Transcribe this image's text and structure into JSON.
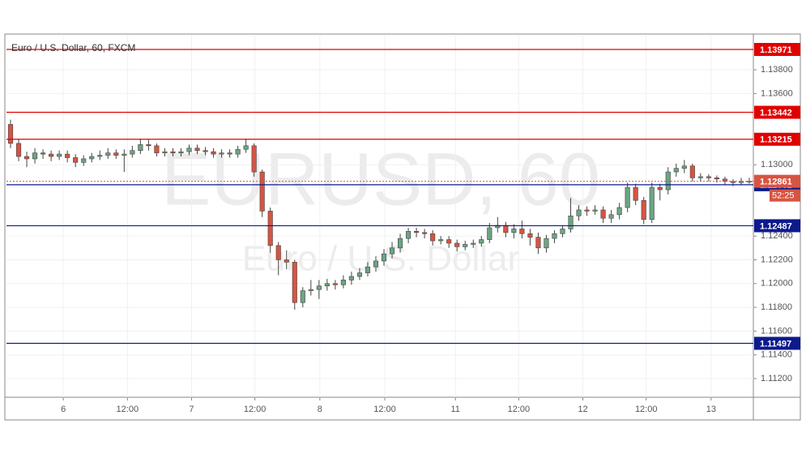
{
  "chart_data": {
    "type": "candlestick",
    "title": "Euro / U.S. Dollar, 60, FXCM",
    "watermark": "EURUSD, 60",
    "watermark_subtitle": "Euro / U.S. Dollar",
    "up_color": "#6ba583",
    "down_color": "#d75442",
    "open": [
      1.1334,
      1.1318,
      1.1307,
      1.1305,
      1.131,
      1.1309,
      1.1307,
      1.1309,
      1.1306,
      1.1302,
      1.1305,
      1.1307,
      1.1308,
      1.131,
      1.1308,
      1.1309,
      1.1312,
      1.1317,
      1.1316,
      1.131,
      1.1311,
      1.131,
      1.1311,
      1.1314,
      1.1312,
      1.1311,
      1.1309,
      1.131,
      1.1309,
      1.1313,
      1.1316,
      1.1294,
      1.1261,
      1.1232,
      1.122,
      1.1218,
      1.1184,
      1.1194,
      1.1195,
      1.1198,
      1.12,
      1.1199,
      1.1203,
      1.1206,
      1.1209,
      1.1214,
      1.1219,
      1.1225,
      1.123,
      1.1238,
      1.1244,
      1.1243,
      1.1242,
      1.1236,
      1.1237,
      1.1234,
      1.1231,
      1.1233,
      1.1234,
      1.1237,
      1.1247,
      1.1249,
      1.1243,
      1.1246,
      1.1242,
      1.1239,
      1.123,
      1.1238,
      1.1242,
      1.1246,
      1.1257,
      1.1262,
      1.1261,
      1.1262,
      1.1255,
      1.1258,
      1.1264,
      1.1281,
      1.127,
      1.1254,
      1.1281,
      1.1279,
      1.1294,
      1.1297,
      1.1299,
      1.1289,
      1.129,
      1.1289,
      1.1288,
      1.1286,
      1.1285,
      1.1286
    ],
    "high": [
      1.1338,
      1.1322,
      1.1311,
      1.1314,
      1.1313,
      1.1312,
      1.1312,
      1.1312,
      1.1309,
      1.1308,
      1.131,
      1.1312,
      1.1314,
      1.1313,
      1.1313,
      1.1316,
      1.1322,
      1.1321,
      1.1318,
      1.1314,
      1.1314,
      1.1314,
      1.1317,
      1.1317,
      1.1315,
      1.1314,
      1.1313,
      1.1313,
      1.1316,
      1.1322,
      1.1318,
      1.1296,
      1.1264,
      1.1235,
      1.1228,
      1.122,
      1.1197,
      1.1203,
      1.1203,
      1.1204,
      1.1203,
      1.1207,
      1.121,
      1.1213,
      1.1218,
      1.1223,
      1.1229,
      1.1235,
      1.1242,
      1.1247,
      1.1247,
      1.1246,
      1.1245,
      1.124,
      1.124,
      1.1237,
      1.1236,
      1.1237,
      1.124,
      1.1251,
      1.1256,
      1.1252,
      1.125,
      1.1253,
      1.1246,
      1.1243,
      1.1241,
      1.1245,
      1.1249,
      1.1272,
      1.1266,
      1.1265,
      1.1266,
      1.1265,
      1.1262,
      1.1268,
      1.1285,
      1.1284,
      1.1273,
      1.1285,
      1.1284,
      1.1298,
      1.1301,
      1.1304,
      1.1301,
      1.1293,
      1.1292,
      1.1291,
      1.129,
      1.1288,
      1.1289,
      1.1289
    ],
    "low": [
      1.1314,
      1.1303,
      1.1298,
      1.1301,
      1.1305,
      1.1303,
      1.1304,
      1.1302,
      1.1298,
      1.1299,
      1.1302,
      1.1304,
      1.1305,
      1.1305,
      1.1294,
      1.1306,
      1.1309,
      1.1312,
      1.1307,
      1.1307,
      1.1307,
      1.1307,
      1.1308,
      1.1309,
      1.1308,
      1.1306,
      1.1306,
      1.1306,
      1.1306,
      1.131,
      1.129,
      1.1256,
      1.1226,
      1.1207,
      1.1212,
      1.1178,
      1.118,
      1.119,
      1.1187,
      1.1194,
      1.1195,
      1.1196,
      1.1199,
      1.1203,
      1.1206,
      1.121,
      1.1215,
      1.1221,
      1.1226,
      1.1234,
      1.1239,
      1.1238,
      1.1232,
      1.1233,
      1.123,
      1.1227,
      1.1228,
      1.123,
      1.1231,
      1.1234,
      1.1243,
      1.1239,
      1.1238,
      1.1238,
      1.1232,
      1.1225,
      1.1226,
      1.1234,
      1.1239,
      1.1243,
      1.1253,
      1.1257,
      1.1258,
      1.1251,
      1.1251,
      1.1254,
      1.126,
      1.1266,
      1.125,
      1.1251,
      1.127,
      1.1275,
      1.129,
      1.1293,
      1.1286,
      1.1286,
      1.1286,
      1.1285,
      1.1283,
      1.1282,
      1.1283,
      1.1284
    ],
    "close": [
      1.1318,
      1.1307,
      1.1305,
      1.131,
      1.1309,
      1.1307,
      1.1309,
      1.1306,
      1.1302,
      1.1305,
      1.1307,
      1.1308,
      1.131,
      1.1308,
      1.1309,
      1.1312,
      1.1317,
      1.1316,
      1.131,
      1.1311,
      1.131,
      1.1311,
      1.1314,
      1.1312,
      1.1311,
      1.1309,
      1.131,
      1.1309,
      1.1313,
      1.1316,
      1.1294,
      1.1261,
      1.1232,
      1.122,
      1.1218,
      1.1184,
      1.1194,
      1.1195,
      1.1198,
      1.12,
      1.1199,
      1.1203,
      1.1206,
      1.1209,
      1.1214,
      1.1219,
      1.1225,
      1.123,
      1.1238,
      1.1244,
      1.1243,
      1.1242,
      1.1236,
      1.1237,
      1.1234,
      1.1231,
      1.1233,
      1.1234,
      1.1237,
      1.1247,
      1.1249,
      1.1243,
      1.1246,
      1.1242,
      1.1239,
      1.123,
      1.1238,
      1.1242,
      1.1246,
      1.1257,
      1.1262,
      1.1261,
      1.1262,
      1.1255,
      1.1258,
      1.1264,
      1.1281,
      1.127,
      1.1254,
      1.1281,
      1.1279,
      1.1294,
      1.1297,
      1.1299,
      1.1289,
      1.129,
      1.1289,
      1.1288,
      1.1286,
      1.1285,
      1.1286,
      1.12861
    ],
    "xlim": [
      -0.5,
      91.5
    ],
    "xticks": [
      {
        "value": 6.5,
        "label": "6"
      },
      {
        "value": 14.4,
        "label": "12:00"
      },
      {
        "value": 22.3,
        "label": "7"
      },
      {
        "value": 30.1,
        "label": "12:00"
      },
      {
        "value": 38.1,
        "label": "8"
      },
      {
        "value": 46.1,
        "label": "12:00"
      },
      {
        "value": 54.8,
        "label": "11"
      },
      {
        "value": 62.6,
        "label": "12:00"
      },
      {
        "value": 70.5,
        "label": "12"
      },
      {
        "value": 78.3,
        "label": "12:00"
      },
      {
        "value": 86.3,
        "label": "13"
      }
    ],
    "ylim": [
      1.11043,
      1.14087
    ],
    "yticks": [
      {
        "value": 1.112,
        "label": "1.11200"
      },
      {
        "value": 1.114,
        "label": "1.11400"
      },
      {
        "value": 1.116,
        "label": "1.11600"
      },
      {
        "value": 1.118,
        "label": "1.11800"
      },
      {
        "value": 1.12,
        "label": "1.12000"
      },
      {
        "value": 1.122,
        "label": "1.12200"
      },
      {
        "value": 1.124,
        "label": "1.12400"
      },
      {
        "value": 1.13,
        "label": "1.13000"
      },
      {
        "value": 1.136,
        "label": "1.13600"
      },
      {
        "value": 1.138,
        "label": "1.13800"
      }
    ],
    "levels": [
      {
        "value": 1.13971,
        "color": "#e00000"
      },
      {
        "value": 1.13442,
        "color": "#e00000"
      },
      {
        "value": 1.13215,
        "color": "#e00000"
      },
      {
        "value": 1.12832,
        "color": "#0d1a8c"
      },
      {
        "value": 1.12487,
        "color": "#0d1a8c"
      },
      {
        "value": 1.11497,
        "color": "#0d1a8c"
      }
    ],
    "last_price": {
      "value": 1.12861,
      "color": "#d75442",
      "countdown": "52:25"
    }
  }
}
